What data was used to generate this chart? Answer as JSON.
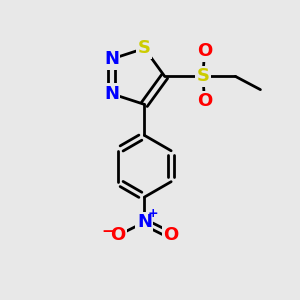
{
  "bg_color": "#e8e8e8",
  "bond_color": "#000000",
  "S_color": "#cccc00",
  "N_color": "#0000ff",
  "O_color": "#ff0000",
  "bond_width": 2.0,
  "font_size": 13,
  "fig_width": 3.0,
  "fig_height": 3.0,
  "dpi": 100,
  "xlim": [
    0,
    10
  ],
  "ylim": [
    0,
    10
  ]
}
